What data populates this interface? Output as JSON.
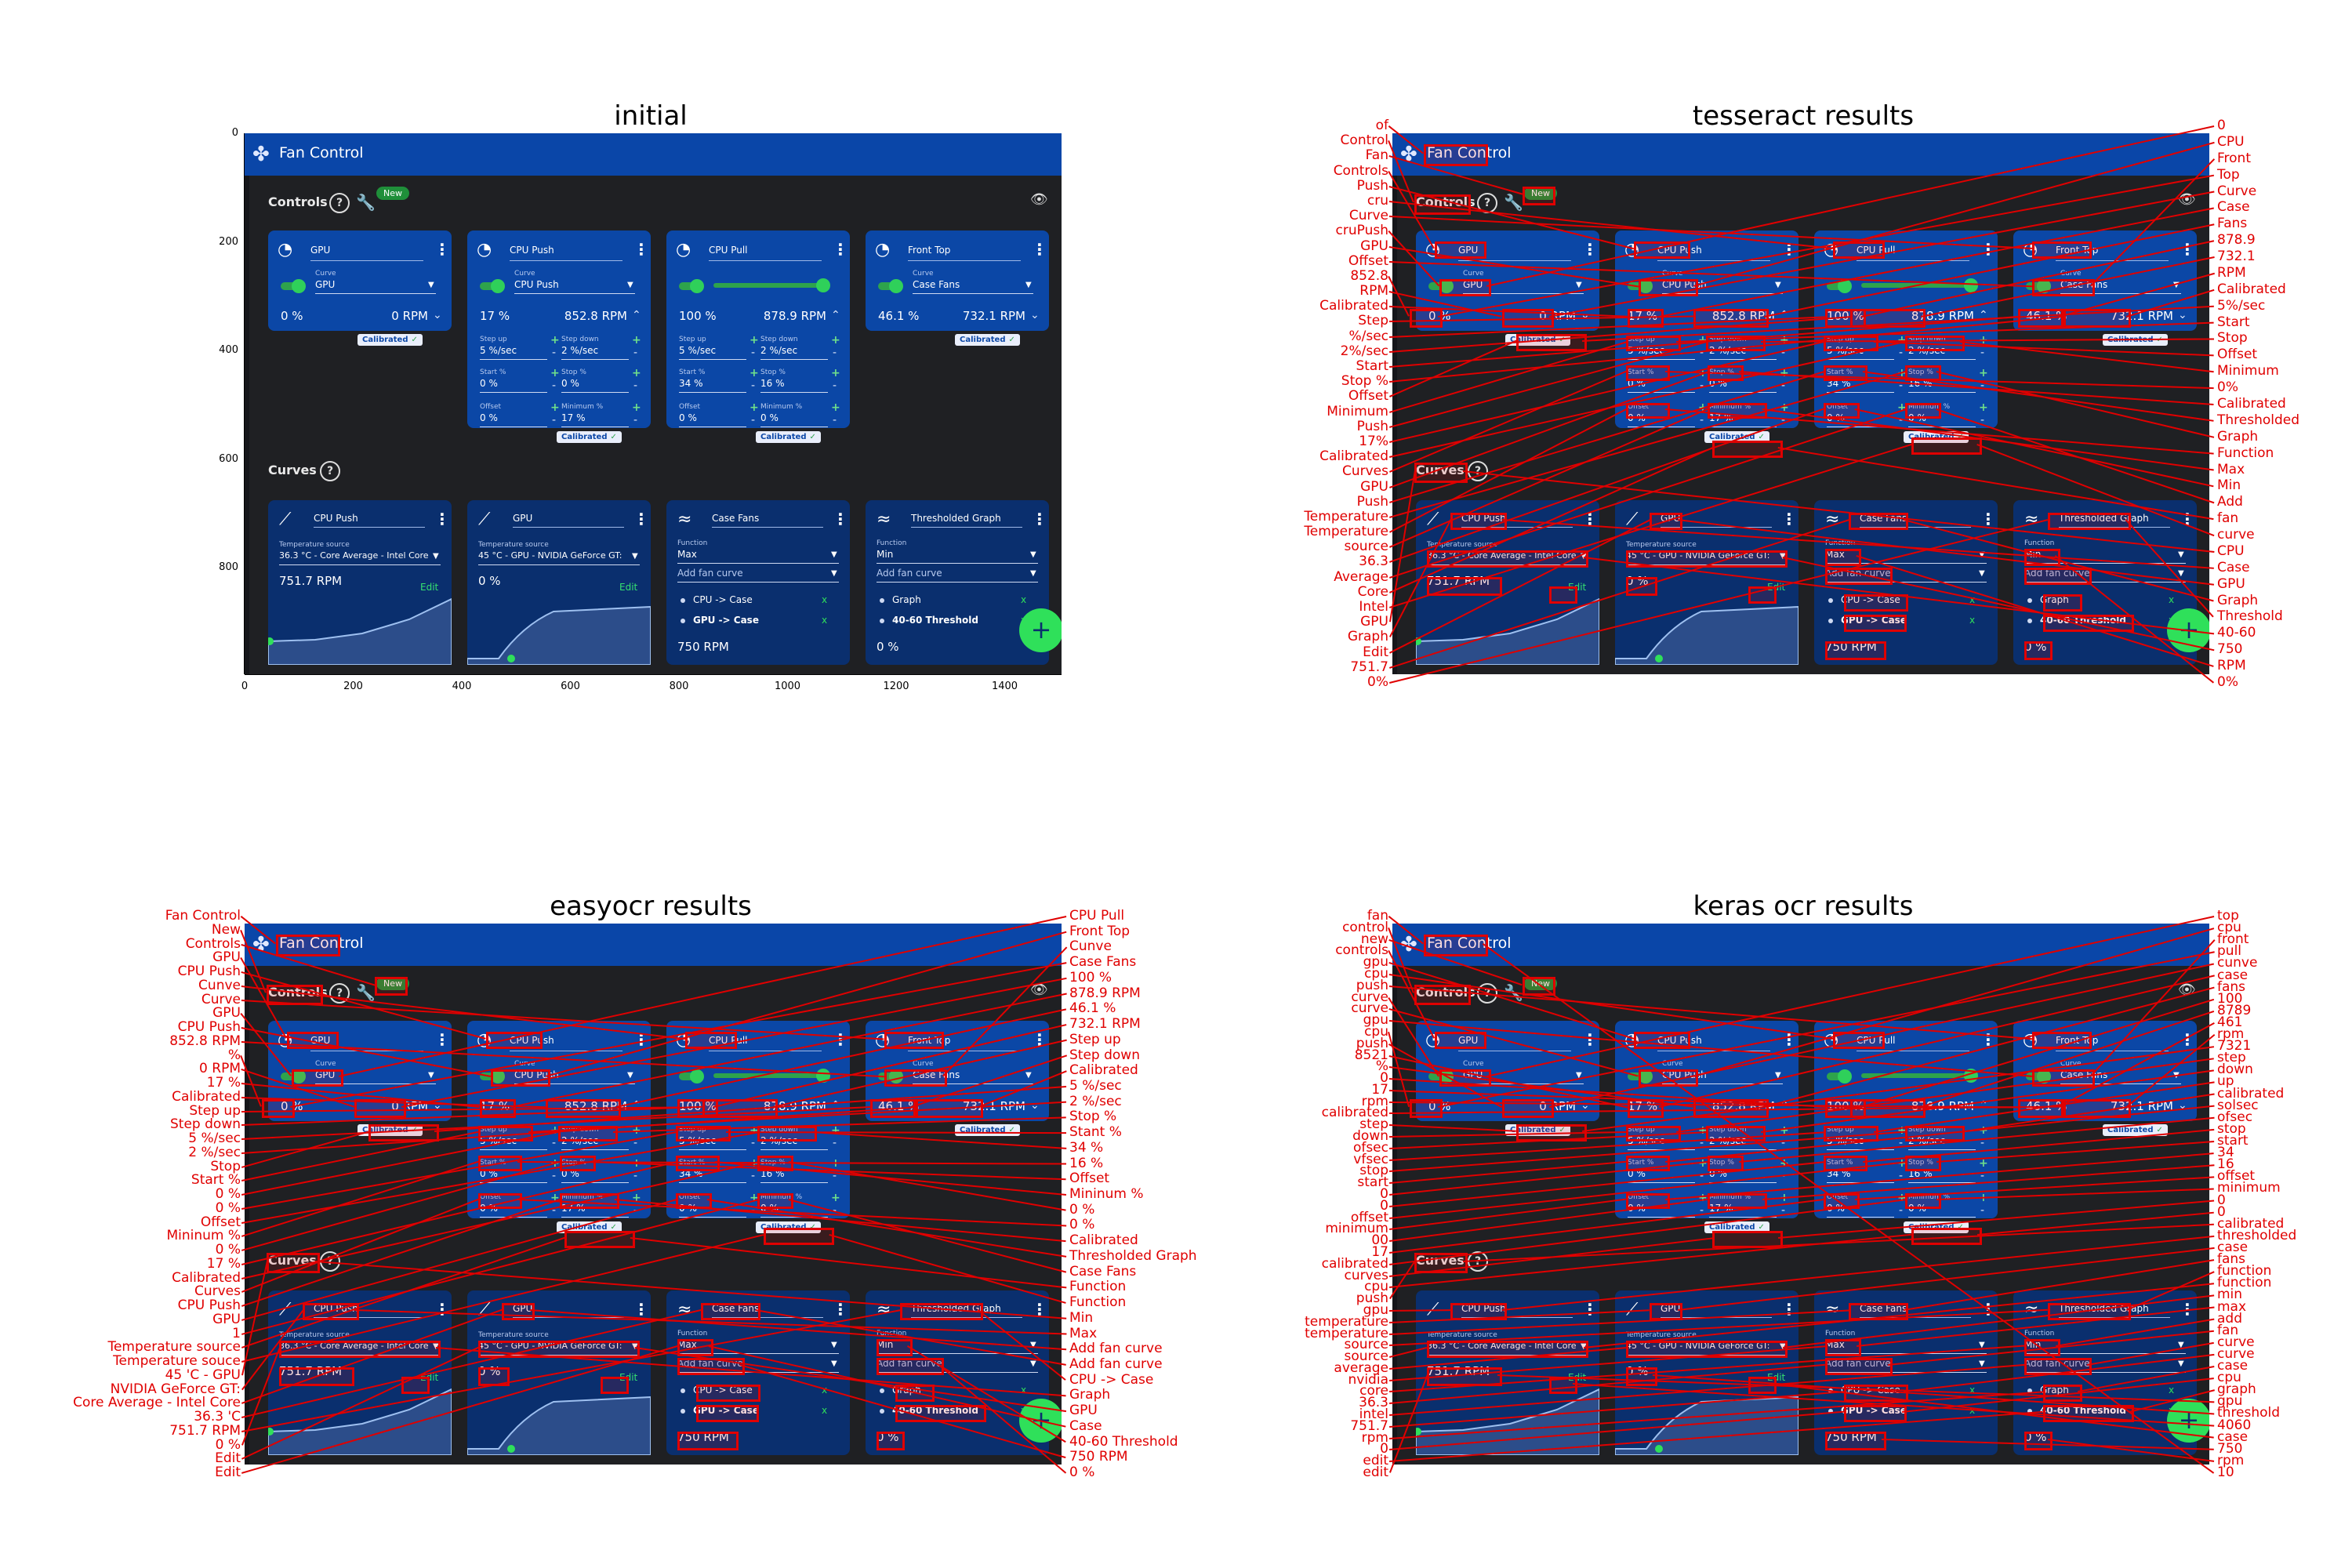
{
  "panels": {
    "initial": "initial",
    "tesseract": "tesseract  results",
    "easyocr": "easyocr results",
    "keras": "keras ocr results"
  },
  "app": {
    "title": "Fan Control",
    "icon": "fan-icon",
    "controls_label": "Controls",
    "curves_label": "Curves",
    "new_badge": "New",
    "help_glyph": "?",
    "calibrated": "Calibrated",
    "fab": "+"
  },
  "controls": [
    {
      "name": "GPU",
      "curve_label": "Curve",
      "curve": "GPU",
      "percent": "0 %",
      "rpm": "0 RPM",
      "chev": "⌄",
      "extended": false
    },
    {
      "name": "CPU Push",
      "curve_label": "Curve",
      "curve": "CPU Push",
      "percent": "17 %",
      "rpm": "852.8 RPM",
      "chev": "⌃",
      "extended": true,
      "step_up_label": "Step up",
      "step_up": "5 %/sec",
      "step_down_label": "Step down",
      "step_down": "2 %/sec",
      "start_label": "Start %",
      "start": "0 %",
      "stop_label": "Stop %",
      "stop": "0 %",
      "offset_label": "Offset",
      "offset": "0 %",
      "minimum_label": "Minimum %",
      "minimum": "17 %"
    },
    {
      "name": "CPU Pull",
      "curve_label": "",
      "curve": "",
      "percent": "100 %",
      "rpm": "878.9 RPM",
      "chev": "⌃",
      "extended": true,
      "slider": 1.0,
      "step_up_label": "Step up",
      "step_up": "5 %/sec",
      "step_down_label": "Step down",
      "step_down": "2 %/sec",
      "start_label": "Start %",
      "start": "34 %",
      "stop_label": "Stop %",
      "stop": "16 %",
      "offset_label": "Offset",
      "offset": "0 %",
      "minimum_label": "Minimum %",
      "minimum": "0 %"
    },
    {
      "name": "Front Top",
      "curve_label": "Curve",
      "curve": "Case Fans",
      "percent": "46.1 %",
      "rpm": "732.1 RPM",
      "chev": "⌄",
      "extended": false
    }
  ],
  "curves": [
    {
      "name": "CPU Push",
      "icon": "graph-line-icon",
      "source_label": "Temperature source",
      "source": "36.3 °C - Core Average - Intel Core",
      "value": "751.7 RPM",
      "edit": "Edit",
      "graph": "rising"
    },
    {
      "name": "GPU",
      "icon": "graph-line-icon",
      "source_label": "Temperature source",
      "source": "45 °C - GPU - NVIDIA GeForce GT:",
      "value": "0 %",
      "edit": "Edit",
      "graph": "s-curve"
    },
    {
      "name": "Case Fans",
      "icon": "mix-icon",
      "function_label": "Function",
      "function": "Max",
      "add_label": "Add fan curve",
      "items": [
        {
          "text": "CPU -> Case",
          "bold": false
        },
        {
          "text": "GPU -> Case",
          "bold": true
        }
      ],
      "value": "750 RPM"
    },
    {
      "name": "Thresholded Graph",
      "icon": "mix-icon",
      "function_label": "Function",
      "function": "Min",
      "add_label": "Add fan curve",
      "items": [
        {
          "text": "Graph",
          "bold": false
        },
        {
          "text": "40-60 Threshold",
          "bold": true
        }
      ],
      "value": "0 %"
    }
  ],
  "axes": {
    "x_ticks": [
      "0",
      "200",
      "400",
      "600",
      "800",
      "1000",
      "1200",
      "1400"
    ],
    "y_ticks": [
      "0",
      "200",
      "400",
      "600",
      "800"
    ]
  },
  "tesseract": {
    "left_labels": [
      "of",
      "Control",
      "Fan",
      "Controls",
      "Push",
      "cru",
      "Curve",
      "cruPush",
      "GPU",
      "Offset",
      "852.8",
      "RPM",
      "Calibrated",
      "Step",
      "%/sec",
      "2%/sec",
      "Start",
      "Stop %",
      "Offset",
      "Minimum",
      "Push",
      "17%",
      "Calibrated",
      "Curves",
      "GPU",
      "Push",
      "Temperature",
      "Temperature",
      "source",
      "36.3",
      "Average",
      "Core",
      "Intel",
      "GPU",
      "Graph",
      "Edit",
      "751.7",
      "0%"
    ],
    "right_labels": [
      "0",
      "CPU",
      "Front",
      "Top",
      "Curve",
      "Case",
      "Fans",
      "878.9",
      "732.1",
      "RPM",
      "Calibrated",
      "5%/sec",
      "Start",
      "Stop",
      "Offset",
      "Minimum",
      "0%",
      "Calibrated",
      "Thresholded",
      "Graph",
      "Function",
      "Max",
      "Min",
      "Add",
      "fan",
      "curve",
      "CPU",
      "Case",
      "GPU",
      "Graph",
      "Threshold",
      "40-60",
      "750",
      "RPM",
      "0%"
    ]
  },
  "easyocr": {
    "left_labels": [
      "Fan Control",
      "New",
      "Controls",
      "GPU",
      "CPU Push",
      "Cunve",
      "Curve",
      "GPU",
      "CPU Push",
      "852.8 RPM",
      "%",
      "0 RPM",
      "17 %",
      "Calibrated",
      "Step up",
      "Step down",
      "5 %/sec",
      "2 %/sec",
      "Stop",
      "Start %",
      "0 %",
      "0 %",
      "Offset",
      "Mininum %",
      "0 %",
      "17 %",
      "Calibrated",
      "Curves",
      "CPU Push",
      "GPU",
      "1",
      "Temperature source",
      "Temperature souce",
      "45 'C - GPU",
      "NVIDIA GeForce GT:",
      "Core Average - Intel Core",
      "36.3 'C",
      "751.7 RPM",
      "0 %",
      "Edit",
      "Edit"
    ],
    "right_labels": [
      "CPU Pull",
      "Front Top",
      "Cunve",
      "Case Fans",
      "100 %",
      "878.9 RPM",
      "46.1 %",
      "732.1 RPM",
      "Step up",
      "Step down",
      "Calibrated",
      "5 %/sec",
      "2 %/sec",
      "Stop %",
      "Stant %",
      "34 %",
      "16 %",
      "Offset",
      "Mininum %",
      "0 %",
      "0 %",
      "Calibrated",
      "Thresholded Graph",
      "Case Fans",
      "Function",
      "Function",
      "Min",
      "Max",
      "Add fan curve",
      "Add fan curve",
      "CPU -> Case",
      "Graph",
      "GPU",
      "Case",
      "40-60 Threshold",
      "750 RPM",
      "0 %"
    ]
  },
  "keras": {
    "left_labels": [
      "fan",
      "control",
      "new",
      "controls",
      "gpu",
      "cpu",
      "push",
      "curve",
      "curve",
      "gpu",
      "cpu",
      "push",
      "8521",
      "%",
      "0",
      "17",
      "rpm",
      "calibrated",
      "step",
      "down",
      "ofsec",
      "vfsec",
      "stop",
      "start",
      "0",
      "0",
      "offset",
      "minimum",
      "00",
      "17",
      "calibrated",
      "curves",
      "cpu",
      "push",
      "gpu",
      "temperature",
      "temperature",
      "source",
      "source",
      "average",
      "nvidia",
      "core",
      "36.3",
      "intel",
      "751.7",
      "rpm",
      "0",
      "edit",
      "edit"
    ],
    "right_labels": [
      "top",
      "cpu",
      "front",
      "pull",
      "cunve",
      "case",
      "fans",
      "100",
      "8789",
      "461",
      "rpm",
      "7321",
      "step",
      "down",
      "up",
      "calibrated",
      "solsec",
      "ofsec",
      "stop",
      "start",
      "34",
      "16",
      "offset",
      "minimum",
      "0",
      "0",
      "calibrated",
      "thresholded",
      "case",
      "fans",
      "function",
      "function",
      "min",
      "max",
      "add",
      "fan",
      "curve",
      "curve",
      "case",
      "cpu",
      "graph",
      "gpu",
      "threshold",
      "4060",
      "case",
      "750",
      "rpm",
      "10"
    ]
  }
}
